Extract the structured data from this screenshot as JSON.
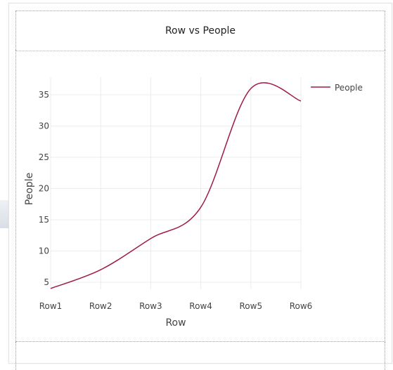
{
  "chart_data": {
    "type": "line",
    "title": "Row vs People",
    "xlabel": "Row",
    "ylabel": "People",
    "categories": [
      "Row1",
      "Row2",
      "Row3",
      "Row4",
      "Row5",
      "Row6"
    ],
    "series": [
      {
        "name": "People",
        "values": [
          4,
          7,
          12,
          17,
          36,
          34
        ],
        "color": "#9e1b4a"
      }
    ],
    "yticks": [
      5,
      10,
      15,
      20,
      25,
      30,
      35
    ],
    "ylim": [
      3,
      38
    ],
    "grid": true,
    "legend_position": "top-right",
    "line_shape": "smooth"
  }
}
